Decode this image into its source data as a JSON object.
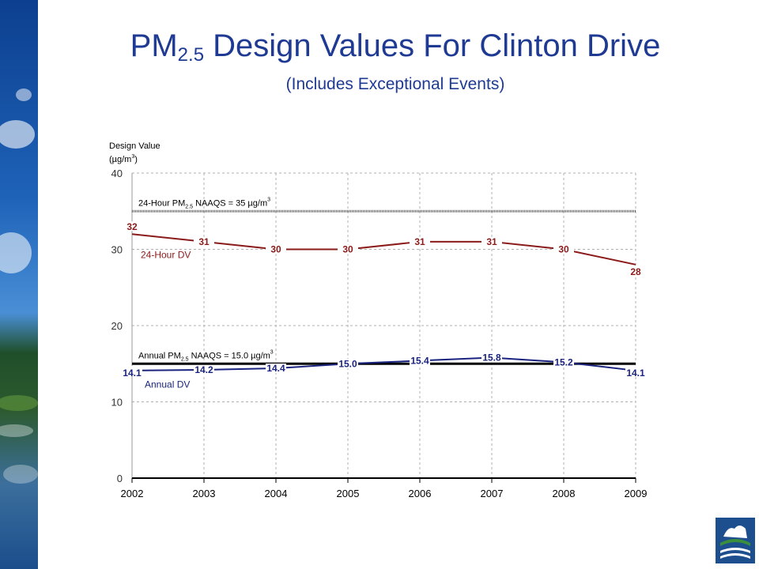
{
  "title": {
    "main_prefix": "PM",
    "main_sub": "2.5",
    "main_suffix": " Design Values For Clinton Drive",
    "subtitle": "(Includes Exceptional Events)"
  },
  "colors": {
    "title": "#1f3a93",
    "hour24_series": "#8b1a1a",
    "annual_series": "#1a237e",
    "standard_line": "#000000"
  },
  "chart_data": {
    "type": "line",
    "ylabel_line1": "Design Value",
    "ylabel_line2_prefix": "(µg/m",
    "ylabel_line2_sup": "3",
    "ylabel_line2_suffix": ")",
    "x": [
      "2002",
      "2003",
      "2004",
      "2005",
      "2006",
      "2007",
      "2008",
      "2009"
    ],
    "ylim": [
      0,
      40
    ],
    "yticks": [
      "0",
      "10",
      "20",
      "30",
      "40"
    ],
    "yticks_values": [
      0,
      10,
      20,
      30,
      40
    ],
    "grid": "dashed vertical and horizontal",
    "series": [
      {
        "name": "24-Hour DV",
        "values": [
          32,
          31,
          30,
          30,
          31,
          31,
          30,
          28
        ],
        "labels": [
          "32",
          "31",
          "30",
          "30",
          "31",
          "31",
          "30",
          "28"
        ]
      },
      {
        "name": "Annual DV",
        "values": [
          14.1,
          14.2,
          14.4,
          15.0,
          15.4,
          15.8,
          15.2,
          14.1
        ],
        "labels": [
          "14.1",
          "14.2",
          "14.4",
          "15.0",
          "15.4",
          "15.8",
          "15.2",
          "14.1"
        ]
      }
    ],
    "standards": [
      {
        "value": 35,
        "label_prefix": "24-Hour PM",
        "label_sub": "2.5",
        "label_suffix": " NAAQS = 35 µg/m",
        "label_sup": "3"
      },
      {
        "value": 15,
        "label_prefix": "Annual PM",
        "label_sub": "2.5",
        "label_suffix": " NAAQS = 15.0 µg/m",
        "label_sup": "3"
      }
    ]
  }
}
